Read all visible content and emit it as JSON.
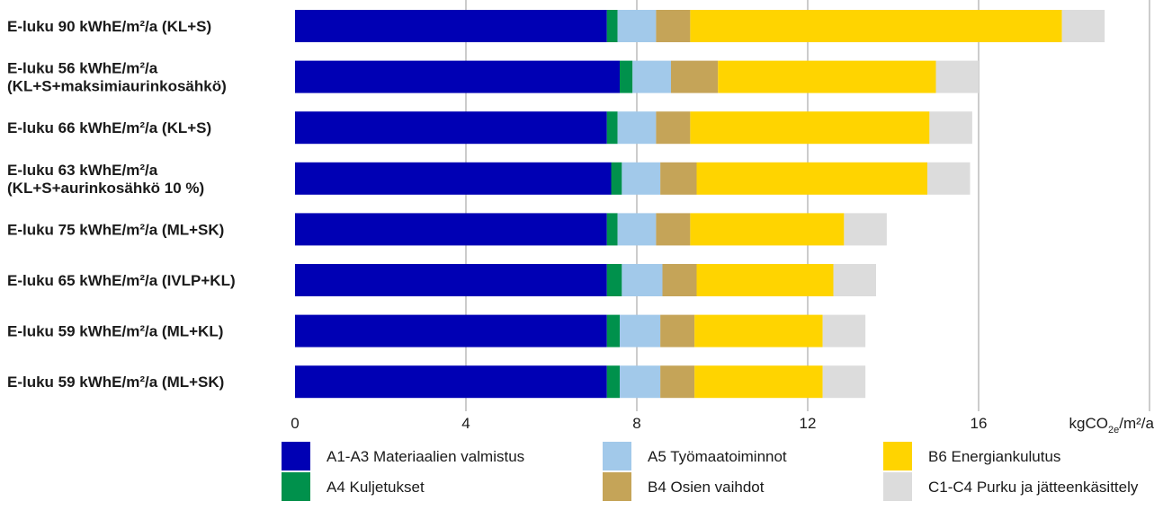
{
  "chart_data": {
    "type": "bar",
    "orientation": "horizontal",
    "stacked": true,
    "title": "",
    "xlabel": "",
    "ylabel": "",
    "xlim": [
      0,
      20
    ],
    "grid": true,
    "legend_position": "bottom",
    "x_ticks": [
      "0",
      "4",
      "8",
      "12",
      "16"
    ],
    "x_tick_values": [
      0,
      4,
      8,
      12,
      16
    ],
    "unit": {
      "prefix": "kgCO",
      "subscript": "2e",
      "suffix": "/m²/a"
    },
    "categories": [
      [
        "E-luku 90 kWhE/m²/a (KL+S)"
      ],
      [
        "E-luku 56 kWhE/m²/a",
        "(KL+S+maksimiaurinkosähkö)"
      ],
      [
        "E-luku 66 kWhE/m²/a (KL+S)"
      ],
      [
        "E-luku 63 kWhE/m²/a",
        "(KL+S+aurinkosähkö 10 %)"
      ],
      [
        "E-luku 75 kWhE/m²/a (ML+SK)"
      ],
      [
        "E-luku 65 kWhE/m²/a (IVLP+KL)"
      ],
      [
        "E-luku 59 kWhE/m²/a (ML+KL)"
      ],
      [
        "E-luku 59 kWhE/m²/a (ML+SK)"
      ]
    ],
    "series": [
      {
        "name": "A1-A3 Materiaalien valmistus",
        "color": "#0000b4",
        "values": [
          7.3,
          7.6,
          7.3,
          7.4,
          7.3,
          7.3,
          7.3,
          7.3
        ]
      },
      {
        "name": "A4 Kuljetukset",
        "color": "#00914c",
        "values": [
          0.25,
          0.3,
          0.25,
          0.25,
          0.25,
          0.35,
          0.3,
          0.3
        ]
      },
      {
        "name": "A5 Työmaatoiminnot",
        "color": "#a2c9ea",
        "values": [
          0.9,
          0.9,
          0.9,
          0.9,
          0.9,
          0.95,
          0.95,
          0.95
        ]
      },
      {
        "name": "B4 Osien vaihdot",
        "color": "#c5a458",
        "values": [
          0.8,
          1.1,
          0.8,
          0.85,
          0.8,
          0.8,
          0.8,
          0.8
        ]
      },
      {
        "name": "B6 Energiankulutus",
        "color": "#ffd400",
        "values": [
          8.7,
          5.1,
          5.6,
          5.4,
          3.6,
          3.2,
          3.0,
          3.0
        ]
      },
      {
        "name": "C1-C4 Purku ja jätteenkäsittely",
        "color": "#dcdcdc",
        "values": [
          1.0,
          1.0,
          1.0,
          1.0,
          1.0,
          1.0,
          1.0,
          1.0
        ]
      }
    ]
  }
}
